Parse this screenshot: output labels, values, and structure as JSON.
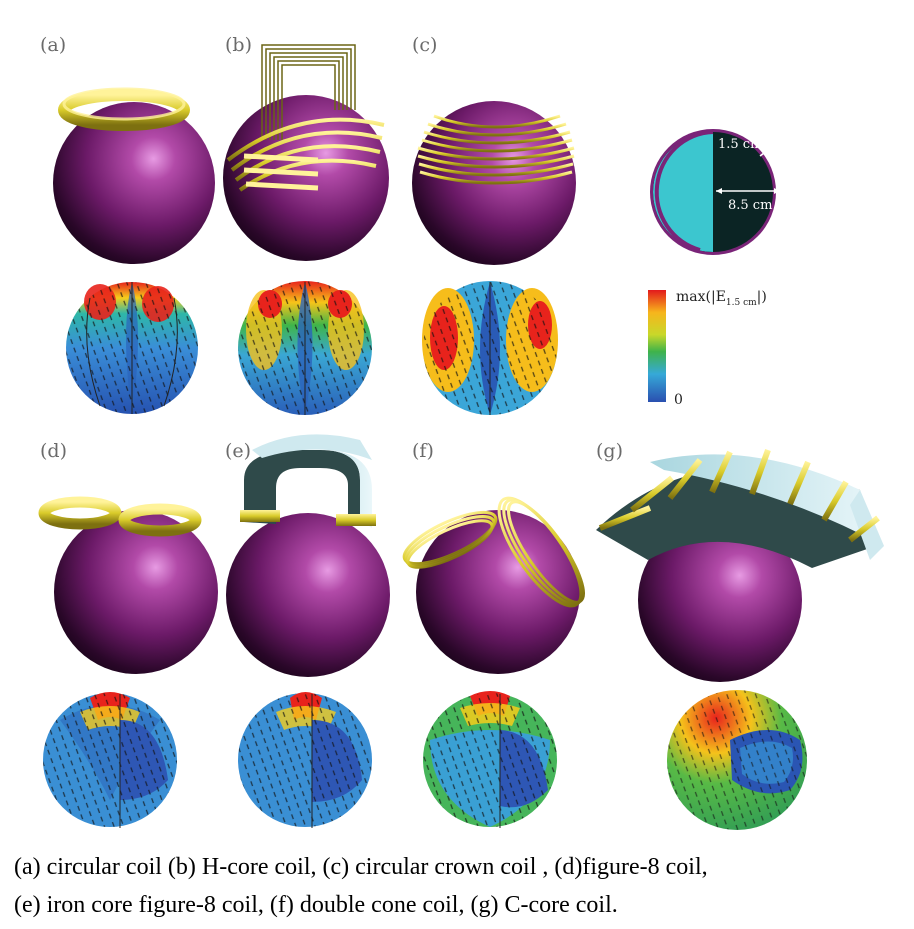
{
  "panels": [
    {
      "id": "a",
      "label": "(a)",
      "coil": "circular"
    },
    {
      "id": "b",
      "label": "(b)",
      "coil": "h-core"
    },
    {
      "id": "c",
      "label": "(c)",
      "coil": "crown"
    },
    {
      "id": "d",
      "label": "(d)",
      "coil": "figure-8"
    },
    {
      "id": "e",
      "label": "(e)",
      "coil": "iron-figure-8"
    },
    {
      "id": "f",
      "label": "(f)",
      "coil": "double-cone"
    },
    {
      "id": "g",
      "label": "(g)",
      "coil": "c-core"
    }
  ],
  "cross_section": {
    "depth_label": "1.5 cm",
    "diameter_label": "8.5 cm"
  },
  "colorbar": {
    "max_label": "max(|E",
    "max_sub": "1.5 cm",
    "max_close": "|)",
    "min_label": "0"
  },
  "colors": {
    "sphere": "#7a1f7a",
    "coil": "#e8dc3a",
    "core": "#2f4a4a",
    "core_light": "#cfe9ef",
    "inner": "#3cc6cf"
  },
  "caption": {
    "line1": "(a)  circular coil (b) H-core coil, (c) circular crown coil , (d)figure-8 coil,",
    "line2": "(e) iron core figure-8 coil, (f) double cone coil, (g)  C-core coil."
  }
}
